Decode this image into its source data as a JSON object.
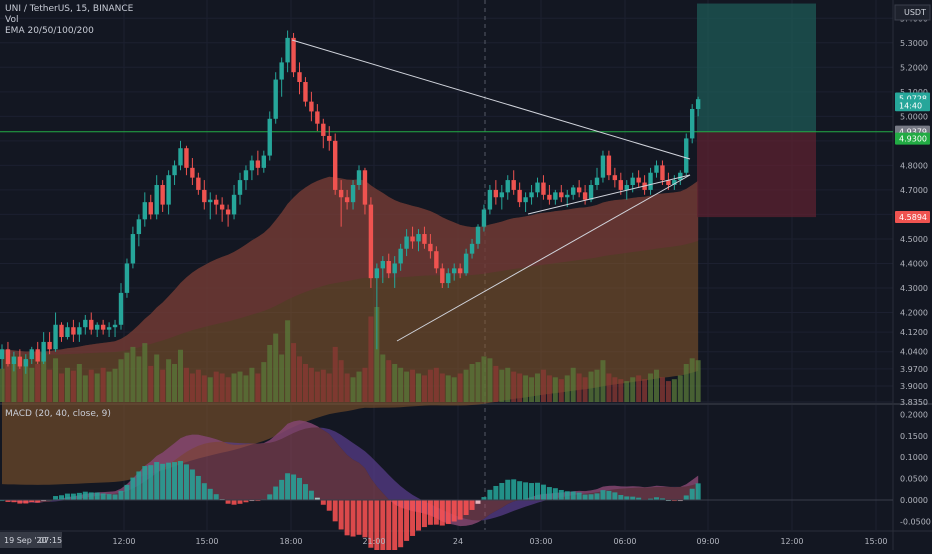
{
  "header": {
    "symbol_line": "UNI / TetherUS, 15, BINANCE",
    "vol_label": "Vol",
    "ema_label": "EMA 20/50/100/200",
    "macd_label": "MACD (20, 40, close, 9)"
  },
  "price_axis": {
    "currency": "USDT",
    "ticks": [
      "5.4000",
      "5.3000",
      "5.2000",
      "5.1000",
      "5.0000",
      "4.9000",
      "4.8000",
      "4.7000",
      "4.6000",
      "4.5000",
      "4.4000",
      "4.3000",
      "4.2000",
      "4.1200",
      "4.0400",
      "3.9700",
      "3.9000",
      "3.8350"
    ],
    "tags": [
      {
        "text": "5.0728",
        "value": 5.0728,
        "color": "#26a69a"
      },
      {
        "text": "14:40",
        "value": 5.045,
        "color": "#26a69a"
      },
      {
        "text": "4.9379",
        "value": 4.9379,
        "color": "#787b86"
      },
      {
        "text": "4.9300",
        "value": 4.909,
        "color": "#22ab44"
      },
      {
        "text": "4.5894",
        "value": 4.5894,
        "color": "#ef5350"
      }
    ]
  },
  "macd_axis": {
    "ticks": [
      "0.2000",
      "0.1500",
      "0.1000",
      "0.0500",
      "0.0000",
      "-0.0500"
    ]
  },
  "time_axis": {
    "ticks": [
      "12:00",
      "15:00",
      "18:00",
      "21:00",
      "24",
      "03:00",
      "06:00",
      "09:00",
      "12:00",
      "15:00"
    ],
    "date_badge": "19 Sep '20",
    "time_badge": "07:15"
  },
  "colors": {
    "up": "#26a69a",
    "down": "#ef5350",
    "background": "#131722",
    "hline": "#22ab44",
    "trendline": "#d1d4dc"
  },
  "chart_data": {
    "type": "candlestick",
    "title": "UNI / TetherUS, 15, BINANCE",
    "price_range": [
      3.835,
      5.45
    ],
    "horizontal_line": 4.937,
    "long_position": {
      "entry": 4.937,
      "target": 5.46,
      "stop": 4.589
    },
    "candles_ohlc": [
      [
        4.01,
        4.07,
        3.97,
        4.05
      ],
      [
        4.05,
        4.08,
        3.98,
        3.99
      ],
      [
        3.99,
        4.04,
        3.96,
        4.02
      ],
      [
        4.02,
        4.05,
        3.97,
        3.98
      ],
      [
        3.98,
        4.03,
        3.95,
        4.01
      ],
      [
        4.01,
        4.06,
        3.99,
        4.05
      ],
      [
        4.05,
        4.08,
        3.99,
        4.0
      ],
      [
        4.0,
        4.12,
        3.99,
        4.08
      ],
      [
        4.08,
        4.12,
        4.03,
        4.05
      ],
      [
        4.05,
        4.2,
        4.04,
        4.15
      ],
      [
        4.15,
        4.16,
        4.08,
        4.1
      ],
      [
        4.1,
        4.16,
        4.09,
        4.14
      ],
      [
        4.14,
        4.17,
        4.08,
        4.11
      ],
      [
        4.11,
        4.16,
        4.08,
        4.14
      ],
      [
        4.14,
        4.19,
        4.11,
        4.17
      ],
      [
        4.17,
        4.2,
        4.11,
        4.13
      ],
      [
        4.13,
        4.16,
        4.1,
        4.15
      ],
      [
        4.15,
        4.17,
        4.11,
        4.13
      ],
      [
        4.13,
        4.16,
        4.1,
        4.14
      ],
      [
        4.14,
        4.17,
        4.1,
        4.15
      ],
      [
        4.15,
        4.32,
        4.13,
        4.28
      ],
      [
        4.28,
        4.42,
        4.26,
        4.4
      ],
      [
        4.4,
        4.55,
        4.38,
        4.52
      ],
      [
        4.52,
        4.6,
        4.47,
        4.58
      ],
      [
        4.58,
        4.69,
        4.55,
        4.65
      ],
      [
        4.65,
        4.68,
        4.58,
        4.6
      ],
      [
        4.6,
        4.76,
        4.58,
        4.72
      ],
      [
        4.72,
        4.74,
        4.61,
        4.64
      ],
      [
        4.64,
        4.78,
        4.6,
        4.76
      ],
      [
        4.76,
        4.82,
        4.72,
        4.8
      ],
      [
        4.8,
        4.9,
        4.78,
        4.87
      ],
      [
        4.87,
        4.88,
        4.76,
        4.79
      ],
      [
        4.79,
        4.83,
        4.72,
        4.75
      ],
      [
        4.75,
        4.77,
        4.68,
        4.7
      ],
      [
        4.7,
        4.74,
        4.62,
        4.65
      ],
      [
        4.65,
        4.69,
        4.58,
        4.66
      ],
      [
        4.66,
        4.68,
        4.6,
        4.64
      ],
      [
        4.64,
        4.67,
        4.57,
        4.62
      ],
      [
        4.62,
        4.64,
        4.55,
        4.6
      ],
      [
        4.6,
        4.72,
        4.58,
        4.68
      ],
      [
        4.68,
        4.77,
        4.64,
        4.74
      ],
      [
        4.74,
        4.8,
        4.7,
        4.78
      ],
      [
        4.78,
        4.84,
        4.74,
        4.82
      ],
      [
        4.82,
        4.86,
        4.76,
        4.79
      ],
      [
        4.79,
        4.86,
        4.77,
        4.84
      ],
      [
        4.84,
        5.02,
        4.82,
        4.99
      ],
      [
        4.99,
        5.18,
        4.97,
        5.15
      ],
      [
        5.15,
        5.24,
        5.08,
        5.22
      ],
      [
        5.22,
        5.35,
        5.18,
        5.32
      ],
      [
        5.32,
        5.34,
        5.16,
        5.18
      ],
      [
        5.18,
        5.22,
        5.09,
        5.14
      ],
      [
        5.14,
        5.16,
        5.04,
        5.06
      ],
      [
        5.06,
        5.1,
        4.98,
        5.02
      ],
      [
        5.02,
        5.05,
        4.94,
        4.97
      ],
      [
        4.97,
        4.99,
        4.87,
        4.92
      ],
      [
        4.92,
        4.96,
        4.86,
        4.9
      ],
      [
        4.9,
        4.93,
        4.68,
        4.7
      ],
      [
        4.7,
        4.74,
        4.55,
        4.67
      ],
      [
        4.67,
        4.7,
        4.62,
        4.65
      ],
      [
        4.65,
        4.74,
        4.62,
        4.72
      ],
      [
        4.72,
        4.8,
        4.7,
        4.78
      ],
      [
        4.78,
        4.79,
        4.6,
        4.64
      ],
      [
        4.64,
        4.67,
        4.3,
        4.34
      ],
      [
        4.34,
        4.4,
        4.05,
        4.38
      ],
      [
        4.38,
        4.43,
        4.32,
        4.41
      ],
      [
        4.41,
        4.44,
        4.34,
        4.36
      ],
      [
        4.36,
        4.43,
        4.3,
        4.4
      ],
      [
        4.4,
        4.48,
        4.37,
        4.46
      ],
      [
        4.46,
        4.54,
        4.43,
        4.51
      ],
      [
        4.51,
        4.55,
        4.46,
        4.49
      ],
      [
        4.49,
        4.54,
        4.45,
        4.52
      ],
      [
        4.52,
        4.55,
        4.46,
        4.48
      ],
      [
        4.48,
        4.52,
        4.42,
        4.45
      ],
      [
        4.45,
        4.47,
        4.36,
        4.38
      ],
      [
        4.38,
        4.4,
        4.3,
        4.32
      ],
      [
        4.32,
        4.38,
        4.3,
        4.36
      ],
      [
        4.36,
        4.4,
        4.33,
        4.38
      ],
      [
        4.38,
        4.4,
        4.34,
        4.36
      ],
      [
        4.36,
        4.46,
        4.35,
        4.44
      ],
      [
        4.44,
        4.5,
        4.42,
        4.48
      ],
      [
        4.48,
        4.56,
        4.46,
        4.55
      ],
      [
        4.55,
        4.64,
        4.53,
        4.62
      ],
      [
        4.62,
        4.72,
        4.6,
        4.7
      ],
      [
        4.7,
        4.74,
        4.64,
        4.67
      ],
      [
        4.67,
        4.72,
        4.62,
        4.69
      ],
      [
        4.69,
        4.76,
        4.66,
        4.74
      ],
      [
        4.74,
        4.78,
        4.68,
        4.7
      ],
      [
        4.7,
        4.73,
        4.63,
        4.65
      ],
      [
        4.65,
        4.69,
        4.61,
        4.67
      ],
      [
        4.67,
        4.72,
        4.64,
        4.69
      ],
      [
        4.69,
        4.75,
        4.67,
        4.73
      ],
      [
        4.73,
        4.76,
        4.66,
        4.68
      ],
      [
        4.68,
        4.72,
        4.64,
        4.66
      ],
      [
        4.66,
        4.7,
        4.64,
        4.69
      ],
      [
        4.69,
        4.72,
        4.65,
        4.67
      ],
      [
        4.67,
        4.7,
        4.63,
        4.68
      ],
      [
        4.68,
        4.72,
        4.66,
        4.71
      ],
      [
        4.71,
        4.74,
        4.67,
        4.69
      ],
      [
        4.69,
        4.72,
        4.64,
        4.66
      ],
      [
        4.66,
        4.74,
        4.65,
        4.72
      ],
      [
        4.72,
        4.79,
        4.7,
        4.75
      ],
      [
        4.75,
        4.86,
        4.73,
        4.84
      ],
      [
        4.84,
        4.86,
        4.74,
        4.76
      ],
      [
        4.76,
        4.79,
        4.71,
        4.74
      ],
      [
        4.74,
        4.77,
        4.68,
        4.7
      ],
      [
        4.7,
        4.74,
        4.66,
        4.72
      ],
      [
        4.72,
        4.77,
        4.69,
        4.75
      ],
      [
        4.75,
        4.78,
        4.71,
        4.73
      ],
      [
        4.73,
        4.76,
        4.68,
        4.7
      ],
      [
        4.7,
        4.79,
        4.68,
        4.77
      ],
      [
        4.77,
        4.82,
        4.75,
        4.8
      ],
      [
        4.8,
        4.82,
        4.72,
        4.74
      ],
      [
        4.74,
        4.77,
        4.7,
        4.72
      ],
      [
        4.72,
        4.76,
        4.7,
        4.74
      ],
      [
        4.74,
        4.78,
        4.72,
        4.77
      ],
      [
        4.77,
        4.93,
        4.76,
        4.91
      ],
      [
        4.91,
        5.05,
        4.89,
        5.03
      ],
      [
        5.03,
        5.08,
        5.0,
        5.07
      ]
    ],
    "volumes": [
      0.35,
      0.42,
      0.48,
      0.38,
      0.44,
      0.36,
      0.4,
      0.52,
      0.34,
      0.46,
      0.3,
      0.36,
      0.33,
      0.4,
      0.28,
      0.34,
      0.3,
      0.36,
      0.32,
      0.35,
      0.45,
      0.52,
      0.58,
      0.48,
      0.62,
      0.38,
      0.5,
      0.34,
      0.45,
      0.4,
      0.55,
      0.36,
      0.3,
      0.34,
      0.28,
      0.26,
      0.32,
      0.3,
      0.26,
      0.3,
      0.32,
      0.28,
      0.36,
      0.3,
      0.42,
      0.6,
      0.72,
      0.5,
      0.86,
      0.62,
      0.48,
      0.4,
      0.36,
      0.32,
      0.34,
      0.3,
      0.58,
      0.44,
      0.3,
      0.26,
      0.32,
      0.36,
      0.9,
      1.0,
      0.5,
      0.44,
      0.4,
      0.36,
      0.32,
      0.34,
      0.3,
      0.28,
      0.34,
      0.36,
      0.3,
      0.28,
      0.26,
      0.3,
      0.34,
      0.4,
      0.42,
      0.48,
      0.46,
      0.38,
      0.34,
      0.36,
      0.32,
      0.3,
      0.28,
      0.26,
      0.3,
      0.34,
      0.28,
      0.26,
      0.24,
      0.28,
      0.36,
      0.3,
      0.26,
      0.32,
      0.34,
      0.44,
      0.3,
      0.26,
      0.24,
      0.22,
      0.26,
      0.28,
      0.24,
      0.3,
      0.34,
      0.26,
      0.22,
      0.24,
      0.28,
      0.4,
      0.46,
      0.44
    ],
    "macd_range": [
      -0.07,
      0.215
    ],
    "macd_ticks": [
      0.2,
      0.15,
      0.1,
      0.05,
      0.0,
      -0.05
    ],
    "annotations": [
      "descending trendline",
      "ascending trendline",
      "horizontal level 4.9379",
      "long position tool"
    ]
  }
}
